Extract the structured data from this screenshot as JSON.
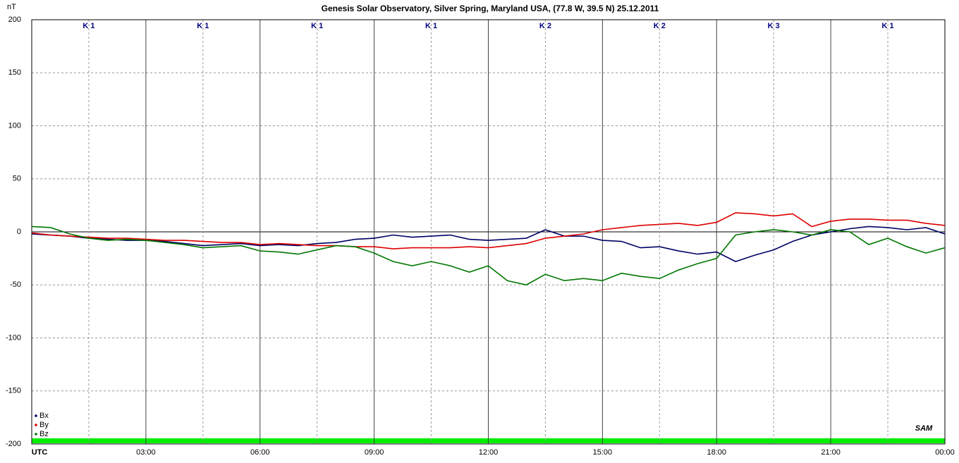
{
  "chart_data": {
    "type": "line",
    "title": "Genesis Solar Observatory, Silver Spring, Maryland USA, (77.8 W, 39.5 N)  25.12.2011",
    "y_label": "nT",
    "k_labels": [
      "K 1",
      "K 1",
      "K 1",
      "K 1",
      "K 2",
      "K 2",
      "K 3",
      "K 1"
    ],
    "logo": "SAM",
    "x": [
      0,
      0.5,
      1,
      1.5,
      2,
      2.5,
      3,
      3.5,
      4,
      4.5,
      5,
      5.5,
      6,
      6.5,
      7,
      7.5,
      8,
      8.5,
      9,
      9.5,
      10,
      10.5,
      11,
      11.5,
      12,
      12.5,
      13,
      13.5,
      14,
      14.5,
      15,
      15.5,
      16,
      16.5,
      17,
      17.5,
      18,
      18.5,
      19,
      19.5,
      20,
      20.5,
      21,
      21.5,
      22,
      22.5,
      23,
      23.5,
      24
    ],
    "series": [
      {
        "name": "Bx",
        "color": "#000066",
        "values": [
          -2,
          -3,
          -4,
          -6,
          -7,
          -8,
          -8,
          -9,
          -11,
          -13,
          -12,
          -11,
          -13,
          -12,
          -13,
          -11,
          -10,
          -7,
          -6,
          -3,
          -5,
          -4,
          -3,
          -7,
          -8,
          -7,
          -6,
          2,
          -4,
          -4,
          -8,
          -9,
          -15,
          -14,
          -18,
          -21,
          -19,
          -28,
          -22,
          -17,
          -9,
          -3,
          0,
          3,
          5,
          4,
          2,
          4,
          -2
        ]
      },
      {
        "name": "By",
        "color": "#dd0000",
        "values": [
          -1,
          -3,
          -4,
          -5,
          -6,
          -6,
          -7,
          -8,
          -8,
          -9,
          -10,
          -10,
          -12,
          -11,
          -12,
          -13,
          -13,
          -14,
          -14,
          -16,
          -15,
          -15,
          -15,
          -14,
          -15,
          -13,
          -11,
          -6,
          -4,
          -2,
          2,
          4,
          6,
          7,
          8,
          6,
          9,
          18,
          17,
          15,
          17,
          5,
          10,
          12,
          12,
          11,
          11,
          8,
          6
        ]
      },
      {
        "name": "Bz",
        "color": "#007700",
        "values": [
          5,
          4,
          -2,
          -6,
          -8,
          -7,
          -8,
          -10,
          -12,
          -15,
          -14,
          -13,
          -18,
          -19,
          -21,
          -17,
          -13,
          -14,
          -20,
          -28,
          -32,
          -28,
          -32,
          -38,
          -32,
          -46,
          -50,
          -40,
          -46,
          -44,
          -46,
          -39,
          -42,
          -44,
          -36,
          -30,
          -25,
          -3,
          0,
          2,
          0,
          -3,
          2,
          0,
          -12,
          -6,
          -14,
          -20,
          -15
        ]
      }
    ],
    "xlim": [
      0,
      24
    ],
    "xticks": [
      {
        "value": 0,
        "label": "UTC"
      },
      {
        "value": 3,
        "label": "03:00"
      },
      {
        "value": 6,
        "label": "06:00"
      },
      {
        "value": 9,
        "label": "09:00"
      },
      {
        "value": 12,
        "label": "12:00"
      },
      {
        "value": 15,
        "label": "15:00"
      },
      {
        "value": 18,
        "label": "18:00"
      },
      {
        "value": 21,
        "label": "21:00"
      },
      {
        "value": 24,
        "label": "00:00"
      }
    ],
    "ylim": [
      -200,
      200
    ],
    "yticks": [
      -200,
      -150,
      -100,
      -50,
      0,
      50,
      100,
      150,
      200
    ],
    "grid": true,
    "legend": "lower left"
  }
}
